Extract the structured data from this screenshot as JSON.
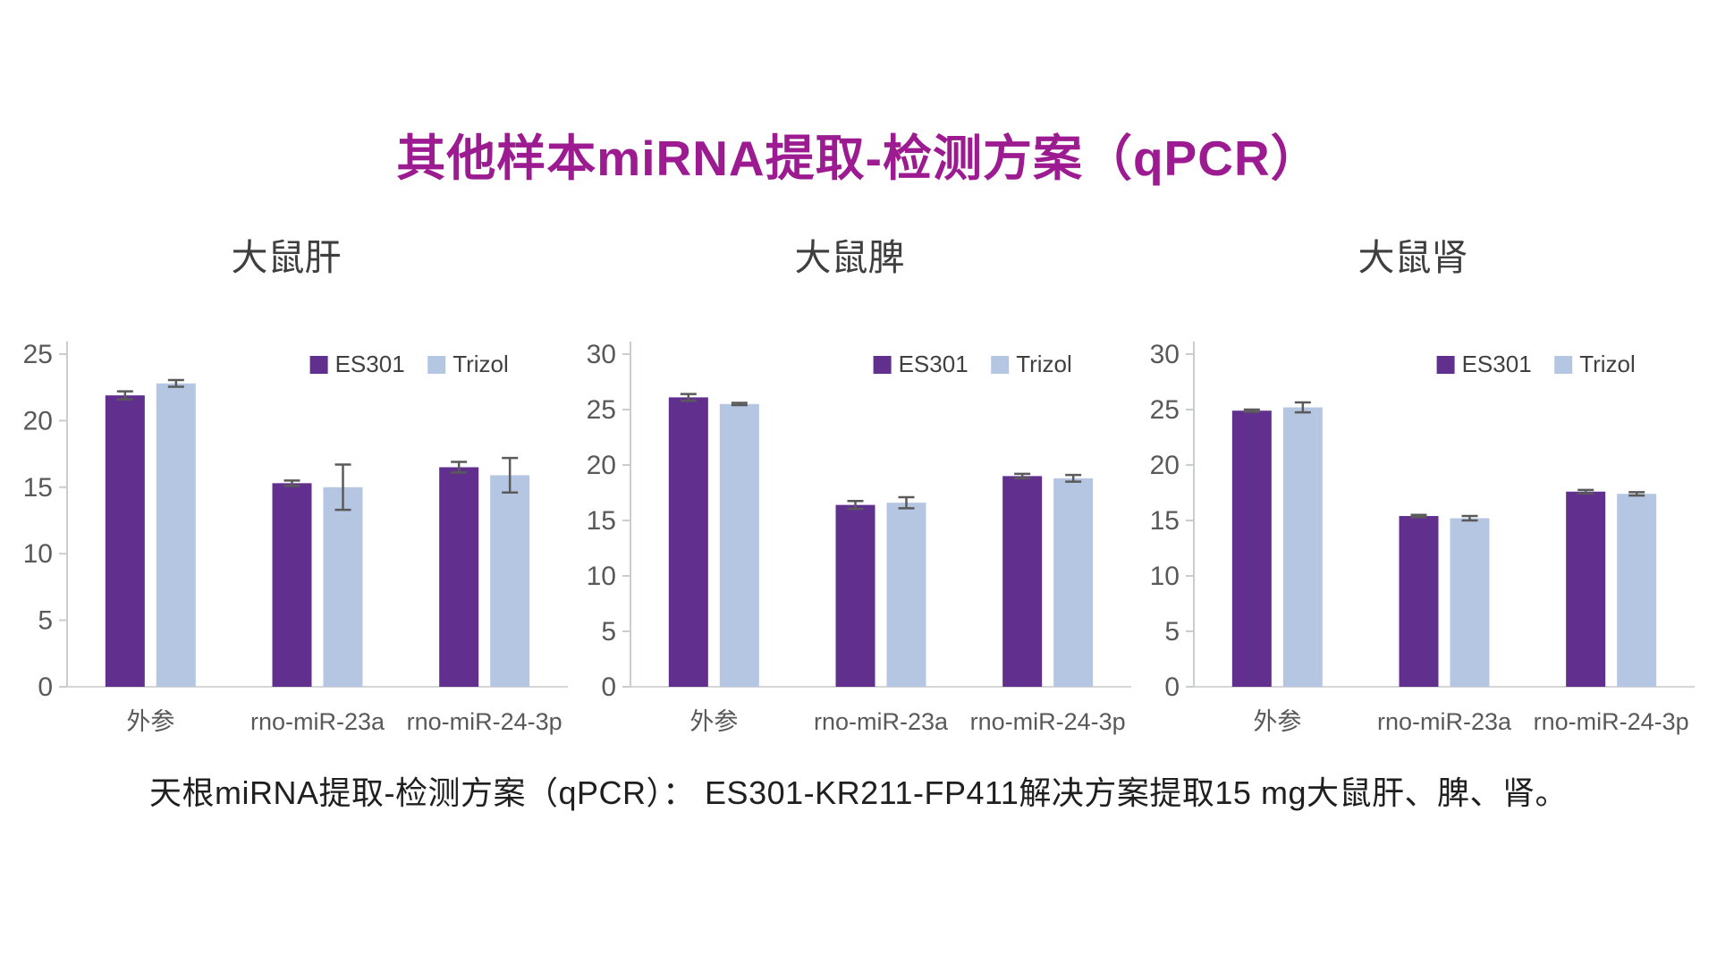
{
  "page": {
    "title": "其他样本miRNA提取-检测方案（qPCR）",
    "caption": "天根miRNA提取-检测方案（qPCR）： ES301-KR211-FP411解决方案提取15 mg大鼠肝、脾、肾。"
  },
  "colors": {
    "title": "#9C1B91",
    "es301": "#61308F",
    "trizol": "#B5C6E2",
    "axis_line": "#C9CCD1",
    "baseline": "#D6D6D6",
    "tick_label": "#595959",
    "x_label": "#595959",
    "chart_title": "#3F3F3F",
    "legend_text": "#404040",
    "error_bar": "#5A5A5A",
    "caption": "#1F1F1F",
    "background": "#FFFFFF"
  },
  "legend": {
    "entries": [
      "ES301",
      "Trizol"
    ],
    "position": "top-center-inside"
  },
  "chart_data": [
    {
      "type": "bar",
      "title": "大鼠肝",
      "categories": [
        "外参",
        "rno-miR-23a",
        "rno-miR-24-3p"
      ],
      "ylim": [
        0,
        25
      ],
      "ytick_step": 5,
      "grid": false,
      "series": [
        {
          "name": "ES301",
          "color_key": "es301",
          "values": [
            21.9,
            15.3,
            16.5
          ],
          "errors": [
            0.3,
            0.2,
            0.4
          ]
        },
        {
          "name": "Trizol",
          "color_key": "trizol",
          "values": [
            22.8,
            15.0,
            15.9
          ],
          "errors": [
            0.25,
            1.7,
            1.3
          ]
        }
      ]
    },
    {
      "type": "bar",
      "title": "大鼠脾",
      "categories": [
        "外参",
        "rno-miR-23a",
        "rno-miR-24-3p"
      ],
      "ylim": [
        0,
        30
      ],
      "ytick_step": 5,
      "grid": false,
      "series": [
        {
          "name": "ES301",
          "color_key": "es301",
          "values": [
            26.1,
            16.4,
            19.0
          ],
          "errors": [
            0.3,
            0.35,
            0.2
          ]
        },
        {
          "name": "Trizol",
          "color_key": "trizol",
          "values": [
            25.5,
            16.6,
            18.8
          ],
          "errors": [
            0.1,
            0.5,
            0.3
          ]
        }
      ]
    },
    {
      "type": "bar",
      "title": "大鼠肾",
      "categories": [
        "外参",
        "rno-miR-23a",
        "rno-miR-24-3p"
      ],
      "ylim": [
        0,
        30
      ],
      "ytick_step": 5,
      "grid": false,
      "series": [
        {
          "name": "ES301",
          "color_key": "es301",
          "values": [
            24.9,
            15.4,
            17.6
          ],
          "errors": [
            0.1,
            0.1,
            0.15
          ]
        },
        {
          "name": "Trizol",
          "color_key": "trizol",
          "values": [
            25.2,
            15.2,
            17.4
          ],
          "errors": [
            0.45,
            0.2,
            0.15
          ]
        }
      ]
    }
  ]
}
